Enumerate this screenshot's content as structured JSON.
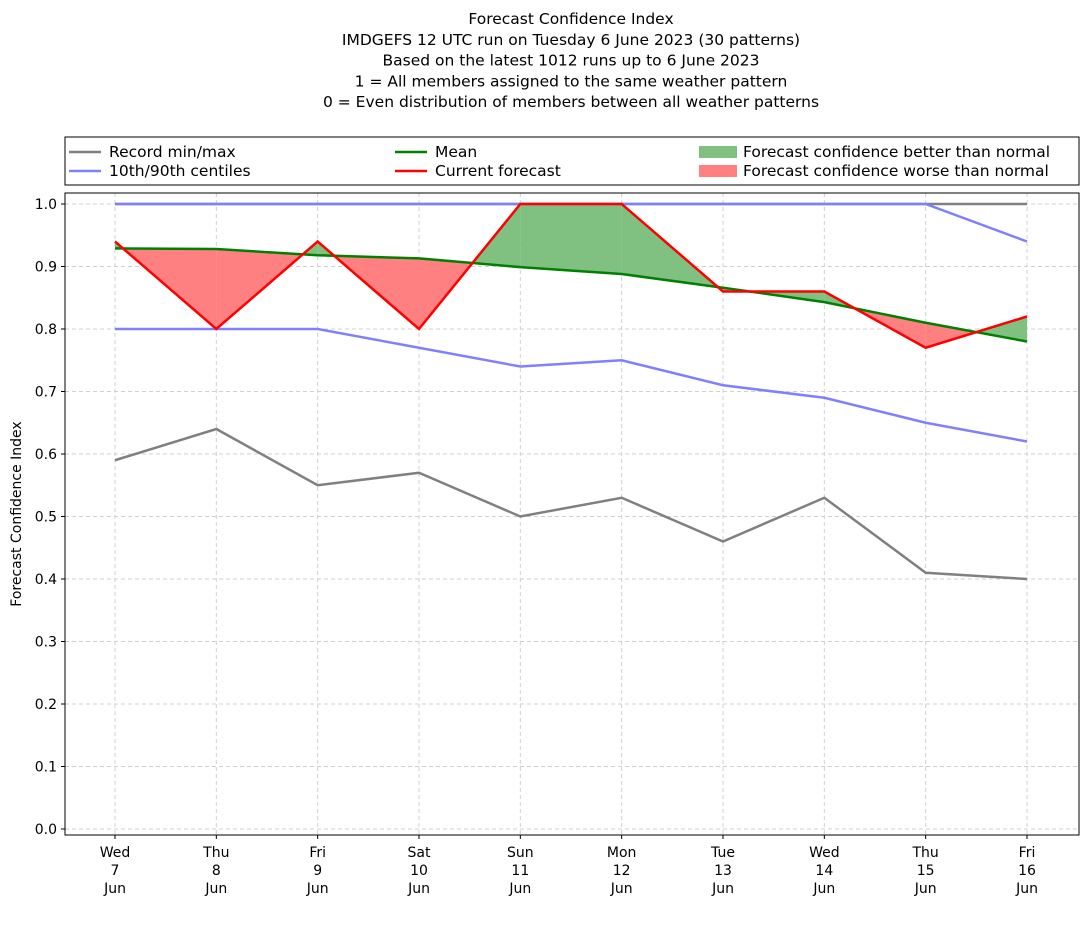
{
  "chart_data": {
    "type": "line",
    "title_lines": [
      "Forecast Confidence Index",
      "IMDGEFS 12 UTC run on Tuesday 6 June 2023 (30 patterns)",
      "Based on the latest 1012 runs up to 6 June 2023",
      "1 = All members assigned to the same weather pattern",
      "0 = Even distribution of members between all weather patterns"
    ],
    "ylabel": "Forecast Confidence Index",
    "xlabel": "",
    "ylim": [
      0,
      1.0
    ],
    "yticks": [
      "0.0",
      "0.1",
      "0.2",
      "0.3",
      "0.4",
      "0.5",
      "0.6",
      "0.7",
      "0.8",
      "0.9",
      "1.0"
    ],
    "categories": [
      [
        "Wed",
        "7",
        "Jun"
      ],
      [
        "Thu",
        "8",
        "Jun"
      ],
      [
        "Fri",
        "9",
        "Jun"
      ],
      [
        "Sat",
        "10",
        "Jun"
      ],
      [
        "Sun",
        "11",
        "Jun"
      ],
      [
        "Mon",
        "12",
        "Jun"
      ],
      [
        "Tue",
        "13",
        "Jun"
      ],
      [
        "Wed",
        "14",
        "Jun"
      ],
      [
        "Thu",
        "15",
        "Jun"
      ],
      [
        "Fri",
        "16",
        "Jun"
      ]
    ],
    "grid": true,
    "legend_placement": "top, above plot",
    "legend": [
      {
        "label": "Record min/max",
        "kind": "line",
        "color": "#808080"
      },
      {
        "label": "10th/90th centiles",
        "kind": "line",
        "color": "#8080ff"
      },
      {
        "label": "Mean",
        "kind": "line",
        "color": "#008000"
      },
      {
        "label": "Current forecast",
        "kind": "line",
        "color": "#ff0000"
      },
      {
        "label": "Forecast confidence better than normal",
        "kind": "fill",
        "color": "#80c080"
      },
      {
        "label": "Forecast confidence worse than normal",
        "kind": "fill",
        "color": "#ff8080"
      }
    ],
    "series": [
      {
        "name": "Record min",
        "color": "#808080",
        "values": [
          0.59,
          0.64,
          0.55,
          0.57,
          0.5,
          0.53,
          0.46,
          0.53,
          0.41,
          0.4
        ]
      },
      {
        "name": "Record max",
        "color": "#808080",
        "values": [
          1.0,
          1.0,
          1.0,
          1.0,
          1.0,
          1.0,
          1.0,
          1.0,
          1.0,
          1.0
        ]
      },
      {
        "name": "10th centile",
        "color": "#8080ff",
        "values": [
          0.8,
          0.8,
          0.8,
          0.77,
          0.74,
          0.75,
          0.71,
          0.69,
          0.65,
          0.62
        ]
      },
      {
        "name": "90th centile",
        "color": "#8080ff",
        "values": [
          1.0,
          1.0,
          1.0,
          1.0,
          1.0,
          1.0,
          1.0,
          1.0,
          1.0,
          0.94
        ]
      },
      {
        "name": "Mean",
        "color": "#008000",
        "values": [
          0.929,
          0.928,
          0.918,
          0.913,
          0.899,
          0.888,
          0.866,
          0.843,
          0.81,
          0.78
        ]
      },
      {
        "name": "Current forecast",
        "color": "#ff0000",
        "values": [
          0.94,
          0.8,
          0.94,
          0.8,
          1.0,
          1.0,
          0.86,
          0.86,
          0.77,
          0.82
        ]
      }
    ]
  }
}
